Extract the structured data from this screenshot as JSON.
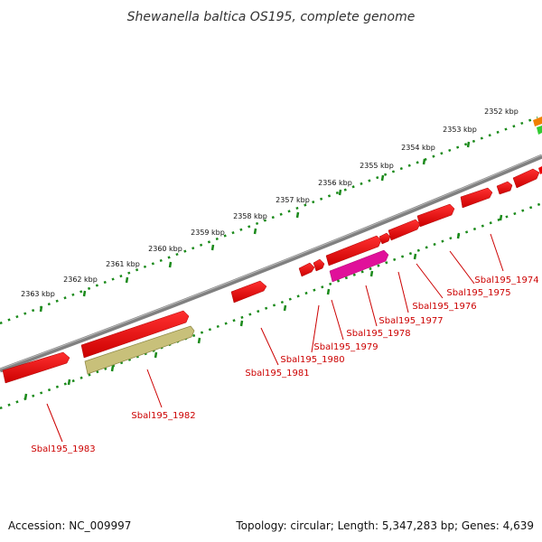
{
  "title": "Shewanella baltica OS195, complete genome",
  "accession": "Accession: NC_009997",
  "summary": "Topology: circular; Length: 5,347,283 bp; Genes: 4,639",
  "ruler_labels": [
    "2352 kbp",
    "2353 kbp",
    "2354 kbp",
    "2355 kbp",
    "2356 kbp",
    "2357 kbp",
    "2358 kbp",
    "2359 kbp",
    "2360 kbp",
    "2361 kbp",
    "2362 kbp",
    "2363 kbp"
  ],
  "gene_labels": [
    "Sbal195_1974",
    "Sbal195_1975",
    "Sbal195_1976",
    "Sbal195_1977",
    "Sbal195_1978",
    "Sbal195_1979",
    "Sbal195_1980",
    "Sbal195_1981",
    "Sbal195_1982",
    "Sbal195_1983"
  ],
  "colors": {
    "backbone": "#808080",
    "ruler_dots": "#1a8a1a",
    "cds_red": "#ee0000",
    "highlight_magenta": "#e0109a",
    "olive": "#c8c07a",
    "label_red": "#cc0000",
    "orange": "#f08000",
    "green": "#33cc33"
  }
}
